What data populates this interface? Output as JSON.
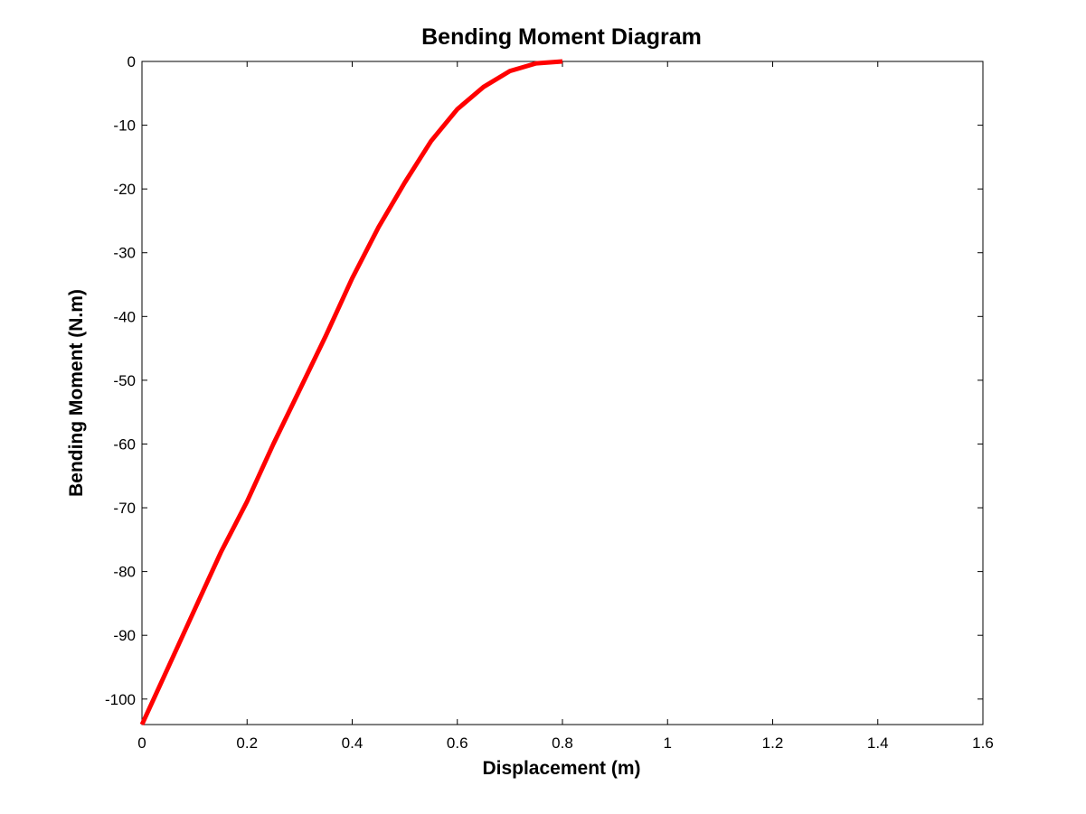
{
  "chart_data": {
    "type": "line",
    "title": "Bending Moment Diagram",
    "xlabel": "Displacement (m)",
    "ylabel": "Bending Moment (N.m)",
    "xlim": [
      0,
      1.6
    ],
    "ylim": [
      -104,
      0
    ],
    "xticks": [
      0,
      0.2,
      0.4,
      0.6,
      0.8,
      1,
      1.2,
      1.4,
      1.6
    ],
    "xtick_labels": [
      "0",
      "0.2",
      "0.4",
      "0.6",
      "0.8",
      "1",
      "1.2",
      "1.4",
      "1.6"
    ],
    "yticks": [
      0,
      -10,
      -20,
      -30,
      -40,
      -50,
      -60,
      -70,
      -80,
      -90,
      -100
    ],
    "ytick_labels": [
      "0",
      "-10",
      "-20",
      "-30",
      "-40",
      "-50",
      "-60",
      "-70",
      "-80",
      "-90",
      "-100"
    ],
    "grid": false,
    "legend": "none",
    "series": [
      {
        "color": "#ff0000",
        "x": [
          0,
          0.05,
          0.1,
          0.15,
          0.2,
          0.25,
          0.3,
          0.35,
          0.4,
          0.45,
          0.5,
          0.55,
          0.6,
          0.65,
          0.7,
          0.75,
          0.8
        ],
        "y": [
          -104,
          -95,
          -86,
          -77,
          -69,
          -60,
          -51.5,
          -43,
          -34,
          -26,
          -19,
          -12.5,
          -7.5,
          -4,
          -1.5,
          -0.3,
          0
        ]
      }
    ]
  }
}
